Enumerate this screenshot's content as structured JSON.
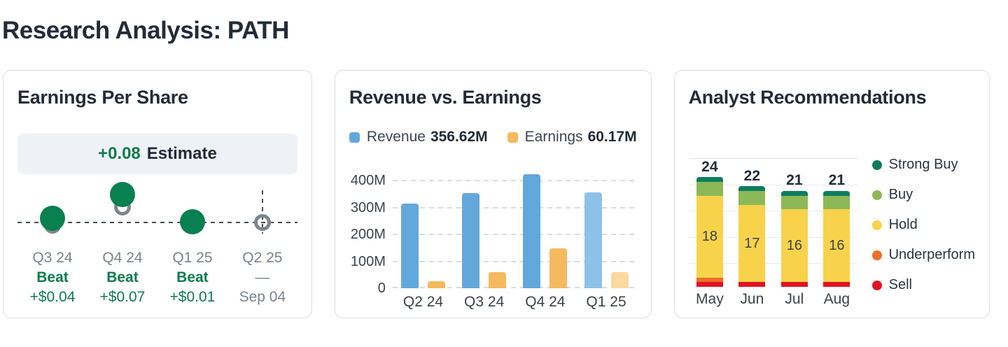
{
  "page": {
    "title": "Research Analysis: PATH"
  },
  "cards": {
    "eps": {
      "title": "Earnings Per Share",
      "estimate_value": "+0.08",
      "estimate_label": "Estimate",
      "chart_data": {
        "type": "scatter",
        "description": "Actual EPS (green dot) vs consensus estimate (gray ring) per quarter",
        "points": [
          {
            "quarter": "Q3 24",
            "status": "Beat",
            "surprise": "+$0.04",
            "has_actual": true,
            "future": false,
            "est_dy": 4,
            "act_dy": -6
          },
          {
            "quarter": "Q4 24",
            "status": "Beat",
            "surprise": "+$0.07",
            "has_actual": true,
            "future": false,
            "est_dy": -22,
            "act_dy": -40
          },
          {
            "quarter": "Q1 25",
            "status": "Beat",
            "surprise": "+$0.01",
            "has_actual": true,
            "future": false,
            "est_dy": 3,
            "act_dy": -1
          },
          {
            "quarter": "Q2 25",
            "status": "—",
            "surprise": "Sep 04",
            "has_actual": false,
            "future": true,
            "est_dy": 0,
            "act_dy": 0
          }
        ]
      }
    },
    "revenue": {
      "title": "Revenue vs. Earnings",
      "legend": [
        {
          "label": "Revenue",
          "value": "356.62M",
          "color": "#63a8db"
        },
        {
          "label": "Earnings",
          "value": "60.17M",
          "color": "#f5b95e"
        }
      ],
      "chart_data": {
        "type": "bar",
        "categories": [
          "Q2 24",
          "Q3 24",
          "Q4 24",
          "Q1 25"
        ],
        "series": [
          {
            "name": "Revenue",
            "unit": "M",
            "values": [
              316,
              355,
              425,
              356.62
            ]
          },
          {
            "name": "Earnings",
            "unit": "M",
            "values": [
              26,
              61,
              147,
              60.17
            ]
          }
        ],
        "yticks": [
          "400M",
          "300M",
          "200M",
          "100M",
          "0"
        ],
        "ytick_values": [
          400,
          300,
          200,
          100,
          0
        ],
        "ylim": [
          0,
          450
        ],
        "grid": "dashed-horizontal",
        "colors": {
          "revenue": "#63a8db",
          "revenue_latest": "#8dc1e8",
          "earnings": "#f5b95e",
          "earnings_latest": "#fbd9a0"
        }
      }
    },
    "analyst": {
      "title": "Analyst Recommendations",
      "chart_data": {
        "type": "stacked-bar",
        "categories": [
          "May",
          "Jun",
          "Jul",
          "Aug"
        ],
        "series_bottom_up": [
          {
            "name": "Sell",
            "color": "#e11422",
            "values": [
              1,
              1,
              1,
              1
            ]
          },
          {
            "name": "Underperform",
            "color": "#ec6f27",
            "values": [
              1,
              0,
              0,
              0
            ]
          },
          {
            "name": "Hold",
            "color": "#f8d24b",
            "values": [
              18,
              17,
              16,
              16
            ]
          },
          {
            "name": "Buy",
            "color": "#8cb857",
            "values": [
              3,
              3,
              3,
              3
            ]
          },
          {
            "name": "Strong Buy",
            "color": "#0d7d5f",
            "values": [
              1,
              1,
              1,
              1
            ]
          }
        ],
        "totals": [
          24,
          22,
          21,
          21
        ],
        "hold_labels": [
          "18",
          "17",
          "16",
          "16"
        ],
        "legend_position": "right",
        "legend": [
          {
            "label": "Strong Buy",
            "color": "#0d7d5f"
          },
          {
            "label": "Buy",
            "color": "#8cb857"
          },
          {
            "label": "Hold",
            "color": "#f8d24b"
          },
          {
            "label": "Underperform",
            "color": "#ec6f27"
          },
          {
            "label": "Sell",
            "color": "#e11422"
          }
        ]
      }
    }
  }
}
